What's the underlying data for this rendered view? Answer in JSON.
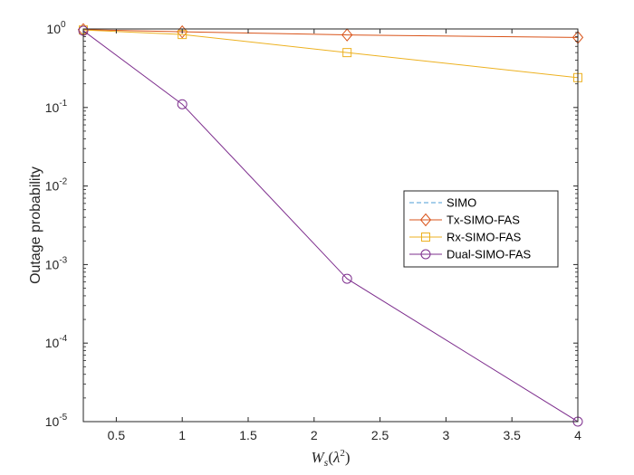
{
  "chart_data": {
    "type": "line",
    "xlabel": "W_s(λ^2)",
    "ylabel": "Outage probability",
    "xscale": "linear",
    "yscale": "log",
    "xlim": [
      0.25,
      4
    ],
    "ylim": [
      1e-05,
      1
    ],
    "xticks": [
      0.5,
      1,
      1.5,
      2,
      2.5,
      3,
      3.5,
      4
    ],
    "xtick_labels": [
      "0.5",
      "1",
      "1.5",
      "2",
      "2.5",
      "3",
      "3.5",
      "4"
    ],
    "yticks": [
      {
        "value": 1e-05,
        "base": "10",
        "exp": "-5"
      },
      {
        "value": 0.0001,
        "base": "10",
        "exp": "-4"
      },
      {
        "value": 0.001,
        "base": "10",
        "exp": "-3"
      },
      {
        "value": 0.01,
        "base": "10",
        "exp": "-2"
      },
      {
        "value": 0.1,
        "base": "10",
        "exp": "-1"
      },
      {
        "value": 1,
        "base": "10",
        "exp": "0"
      }
    ],
    "grid": false,
    "legend_position": "center-right",
    "series": [
      {
        "name": "SIMO",
        "color": "#4d9dd6",
        "line": "dashed",
        "marker": "none",
        "x": [
          0.25,
          1,
          2.25,
          4
        ],
        "y": [
          1.0,
          1.0,
          1.0,
          1.0
        ]
      },
      {
        "name": "Tx-SIMO-FAS",
        "color": "#d95319",
        "line": "solid",
        "marker": "diamond",
        "x": [
          0.25,
          1,
          2.25,
          4
        ],
        "y": [
          0.98,
          0.92,
          0.84,
          0.78
        ]
      },
      {
        "name": "Rx-SIMO-FAS",
        "color": "#edb120",
        "line": "solid",
        "marker": "square",
        "x": [
          0.25,
          1,
          2.25,
          4
        ],
        "y": [
          0.97,
          0.85,
          0.5,
          0.24
        ]
      },
      {
        "name": "Dual-SIMO-FAS",
        "color": "#7e2f8e",
        "line": "solid",
        "marker": "circle",
        "x": [
          0.25,
          1,
          2.25,
          4
        ],
        "y": [
          0.95,
          0.11,
          0.00066,
          1e-05
        ]
      }
    ]
  }
}
